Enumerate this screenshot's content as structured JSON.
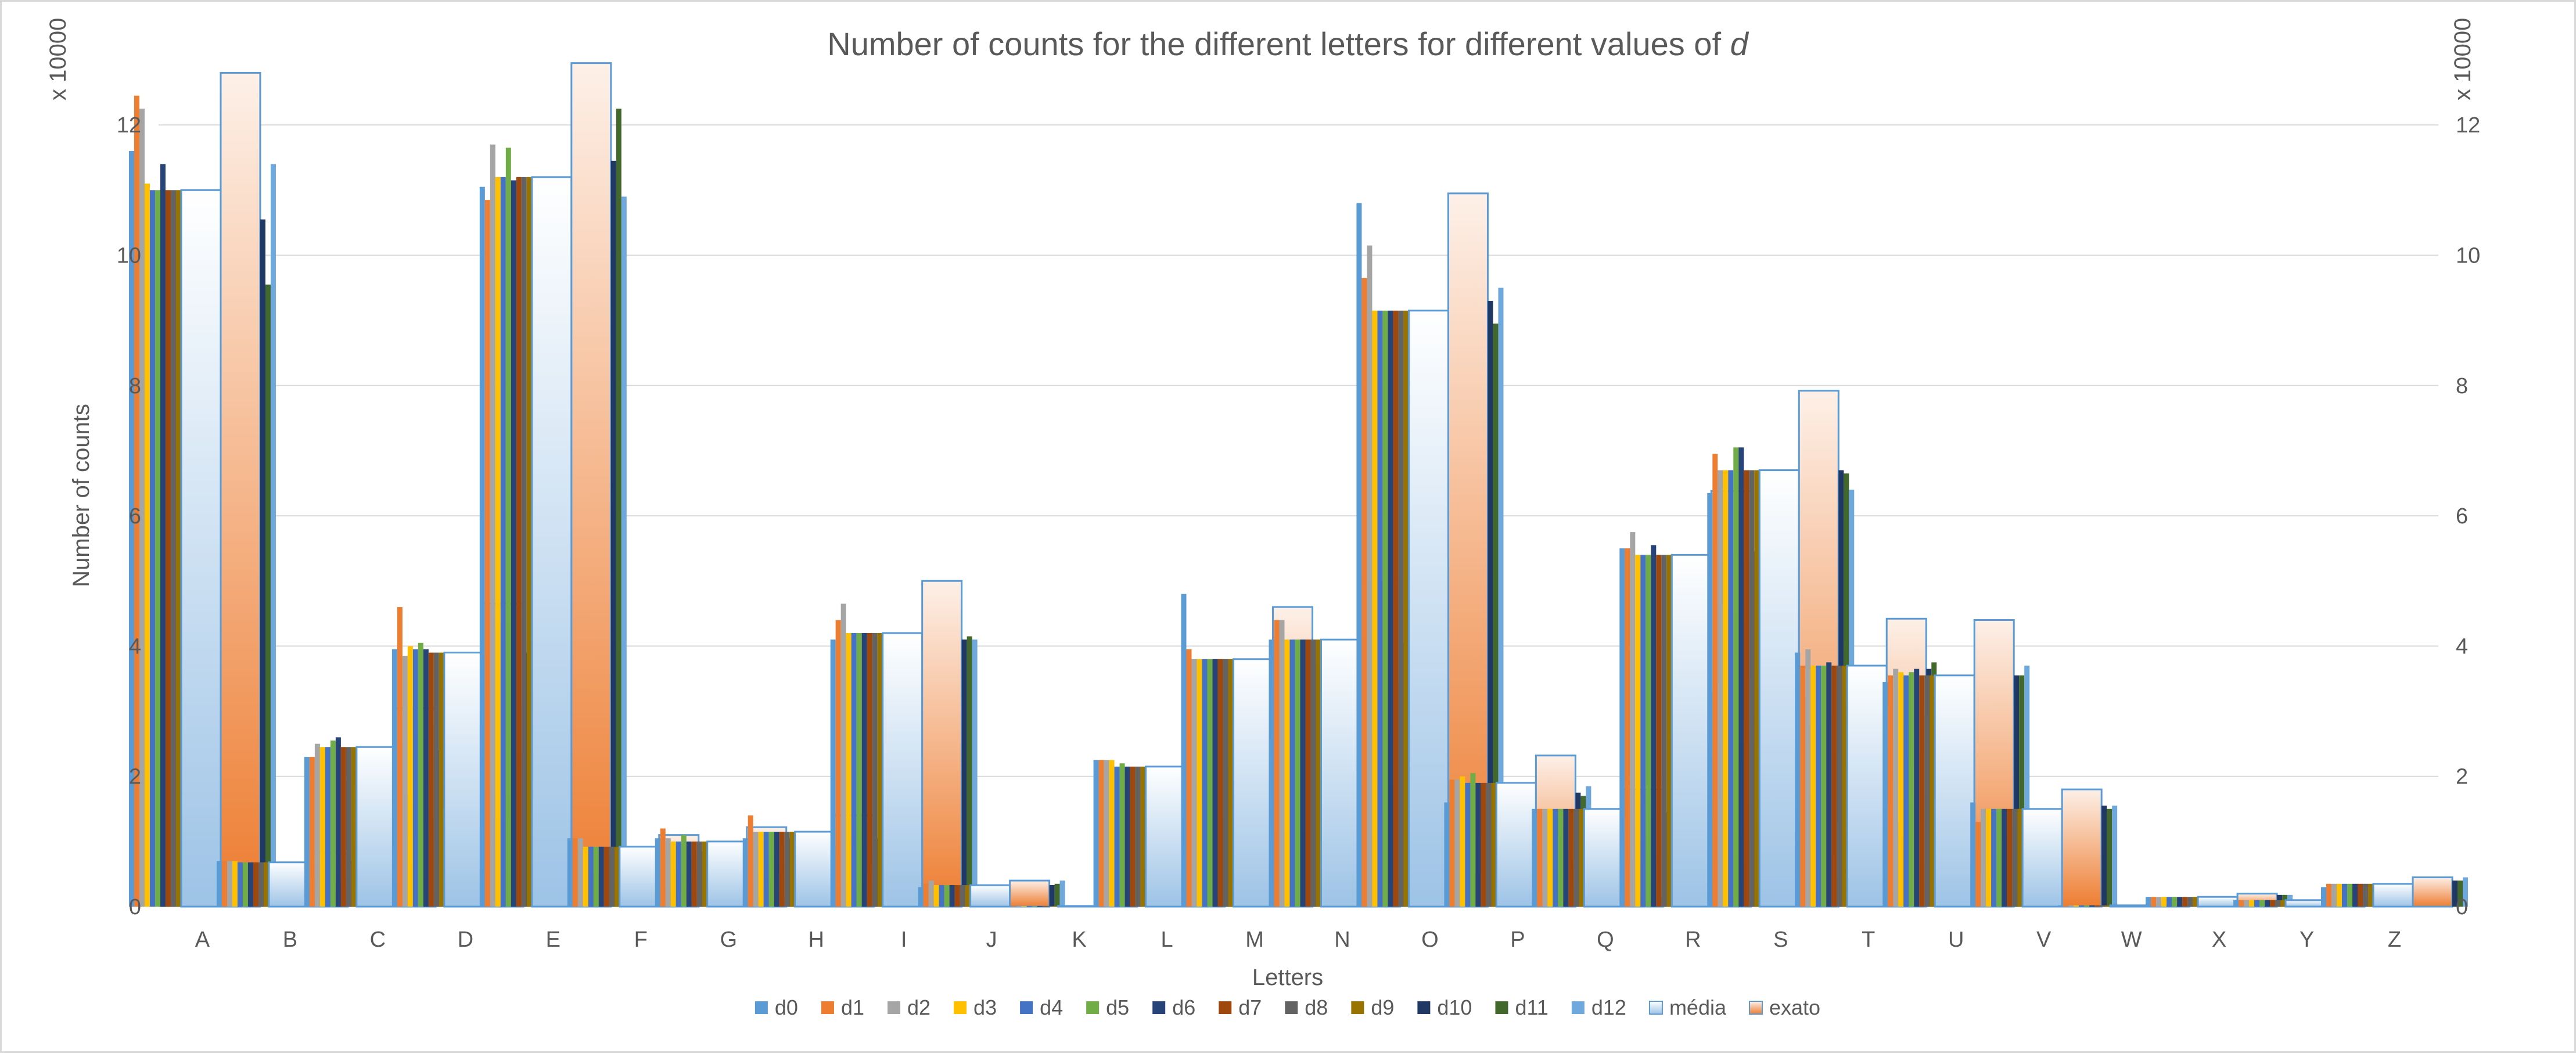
{
  "chart_data": {
    "type": "bar",
    "title": "Number of counts for the different letters for different values of ",
    "title_italic": "d",
    "xlabel": "Letters",
    "ylabel": "Number of counts",
    "multiplier_label": "x 10000",
    "ylim": [
      0,
      13
    ],
    "yticks": [
      0,
      2,
      4,
      6,
      8,
      10,
      12
    ],
    "secondary_axis": true,
    "grid": true,
    "legend_position": "bottom",
    "categories": [
      "A",
      "B",
      "C",
      "D",
      "E",
      "F",
      "G",
      "H",
      "I",
      "J",
      "K",
      "L",
      "M",
      "N",
      "O",
      "P",
      "Q",
      "R",
      "S",
      "T",
      "U",
      "V",
      "W",
      "X",
      "Y",
      "Z"
    ],
    "series": [
      {
        "name": "d0",
        "color": "#5b9bd5",
        "values": [
          11.6,
          0.7,
          2.3,
          3.95,
          11.05,
          1.05,
          1.05,
          1.05,
          4.1,
          0.3,
          0.01,
          2.25,
          4.8,
          4.1,
          10.8,
          1.6,
          1.5,
          5.5,
          6.35,
          3.9,
          3.45,
          1.6,
          0.02,
          0.15,
          0.1,
          0.3
        ]
      },
      {
        "name": "d1",
        "color": "#ed7d31",
        "values": [
          12.45,
          0.7,
          2.3,
          4.6,
          10.85,
          1.05,
          1.2,
          1.4,
          4.4,
          0.35,
          0.01,
          2.25,
          3.95,
          4.4,
          9.65,
          1.95,
          1.5,
          5.5,
          6.95,
          3.7,
          3.55,
          1.3,
          0.02,
          0.15,
          0.1,
          0.35
        ]
      },
      {
        "name": "d2",
        "color": "#a5a5a5",
        "values": [
          12.25,
          0.7,
          2.5,
          3.85,
          11.7,
          1.05,
          1.05,
          1.15,
          4.65,
          0.4,
          0.01,
          2.25,
          3.8,
          4.4,
          10.15,
          1.95,
          1.5,
          5.75,
          6.7,
          3.95,
          3.65,
          1.5,
          0.02,
          0.15,
          0.1,
          0.35
        ]
      },
      {
        "name": "d3",
        "color": "#ffc000",
        "values": [
          11.1,
          0.7,
          2.45,
          4.0,
          11.2,
          0.92,
          1.0,
          1.15,
          4.2,
          0.33,
          0.01,
          2.25,
          3.8,
          4.1,
          9.15,
          2.0,
          1.5,
          5.4,
          6.7,
          3.7,
          3.6,
          1.5,
          0.02,
          0.15,
          0.1,
          0.35
        ]
      },
      {
        "name": "d4",
        "color": "#4472c4",
        "values": [
          11.0,
          0.68,
          2.45,
          3.95,
          11.2,
          0.92,
          1.0,
          1.15,
          4.2,
          0.33,
          0.01,
          2.15,
          3.8,
          4.1,
          9.15,
          1.9,
          1.5,
          5.4,
          6.7,
          3.7,
          3.55,
          1.5,
          0.02,
          0.15,
          0.1,
          0.35
        ]
      },
      {
        "name": "d5",
        "color": "#70ad47",
        "values": [
          11.0,
          0.68,
          2.55,
          4.05,
          11.65,
          0.92,
          1.1,
          1.15,
          4.2,
          0.33,
          0.01,
          2.2,
          3.8,
          4.1,
          9.15,
          2.05,
          1.5,
          5.4,
          7.05,
          3.7,
          3.6,
          1.5,
          0.02,
          0.15,
          0.1,
          0.35
        ]
      },
      {
        "name": "d6",
        "color": "#264478",
        "values": [
          11.4,
          0.68,
          2.6,
          3.95,
          11.15,
          0.92,
          1.0,
          1.15,
          4.2,
          0.33,
          0.01,
          2.15,
          3.8,
          4.1,
          9.15,
          1.9,
          1.5,
          5.55,
          7.05,
          3.75,
          3.65,
          1.5,
          0.02,
          0.15,
          0.1,
          0.35
        ]
      },
      {
        "name": "d7",
        "color": "#9e480e",
        "values": [
          11.0,
          0.68,
          2.45,
          3.9,
          11.2,
          0.92,
          1.0,
          1.15,
          4.2,
          0.33,
          0.01,
          2.15,
          3.8,
          4.1,
          9.15,
          1.9,
          1.5,
          5.4,
          6.7,
          3.7,
          3.55,
          1.5,
          0.02,
          0.15,
          0.1,
          0.35
        ]
      },
      {
        "name": "d8",
        "color": "#636363",
        "values": [
          11.0,
          0.68,
          2.45,
          3.9,
          11.2,
          0.92,
          1.0,
          1.15,
          4.2,
          0.33,
          0.01,
          2.15,
          3.8,
          4.1,
          9.15,
          1.9,
          1.5,
          5.4,
          6.7,
          3.7,
          3.55,
          1.5,
          0.02,
          0.15,
          0.1,
          0.35
        ]
      },
      {
        "name": "d9",
        "color": "#997300",
        "values": [
          11.0,
          0.68,
          2.45,
          3.9,
          11.2,
          0.92,
          1.0,
          1.15,
          4.2,
          0.33,
          0.01,
          2.15,
          3.8,
          4.1,
          9.15,
          1.9,
          1.5,
          5.4,
          6.7,
          3.7,
          3.55,
          1.5,
          0.02,
          0.15,
          0.1,
          0.35
        ]
      },
      {
        "name": "média",
        "color": "#bdd7ee",
        "values": [
          11.0,
          0.68,
          2.45,
          3.9,
          11.2,
          0.92,
          1.0,
          1.15,
          4.2,
          0.33,
          0.01,
          2.15,
          3.8,
          4.1,
          9.15,
          1.9,
          1.5,
          5.4,
          6.7,
          3.7,
          3.55,
          1.5,
          0.02,
          0.15,
          0.1,
          0.35
        ]
      },
      {
        "name": "exato",
        "color": "#f8cbad",
        "values": [
          12.8,
          0.82,
          3.05,
          4.65,
          12.95,
          1.1,
          1.22,
          1.4,
          5.0,
          0.4,
          0.01,
          2.65,
          4.6,
          5.0,
          10.95,
          2.32,
          1.8,
          6.38,
          7.92,
          4.42,
          4.4,
          1.8,
          0.02,
          0.2,
          0.12,
          0.45
        ]
      },
      {
        "name": "d10",
        "color": "#203864",
        "values": [
          10.55,
          0.7,
          2.4,
          3.9,
          11.45,
          0.85,
          1.05,
          1.05,
          4.1,
          0.33,
          0.01,
          2.15,
          3.75,
          4.05,
          9.3,
          1.75,
          1.45,
          5.45,
          6.7,
          3.65,
          3.55,
          1.55,
          0.02,
          0.18,
          0.1,
          0.4
        ]
      },
      {
        "name": "d11",
        "color": "#43682b",
        "values": [
          9.55,
          0.68,
          2.6,
          3.6,
          12.25,
          0.9,
          1.0,
          1.05,
          4.15,
          0.35,
          0.01,
          2.15,
          3.45,
          3.85,
          8.95,
          1.7,
          1.5,
          5.2,
          6.65,
          3.75,
          3.55,
          1.5,
          0.02,
          0.18,
          0.1,
          0.4
        ]
      },
      {
        "name": "d12",
        "color": "#6fa8dc",
        "values": [
          11.4,
          0.7,
          2.7,
          3.75,
          10.9,
          0.95,
          1.0,
          1.2,
          4.1,
          0.4,
          0.01,
          2.0,
          3.6,
          4.15,
          9.5,
          1.85,
          1.65,
          5.6,
          6.4,
          3.55,
          3.7,
          1.55,
          0.02,
          0.18,
          0.1,
          0.45
        ]
      }
    ],
    "legend_order": [
      "d0",
      "d1",
      "d2",
      "d3",
      "d4",
      "d5",
      "d6",
      "d7",
      "d8",
      "d9",
      "d10",
      "d11",
      "d12",
      "média",
      "exato"
    ]
  }
}
